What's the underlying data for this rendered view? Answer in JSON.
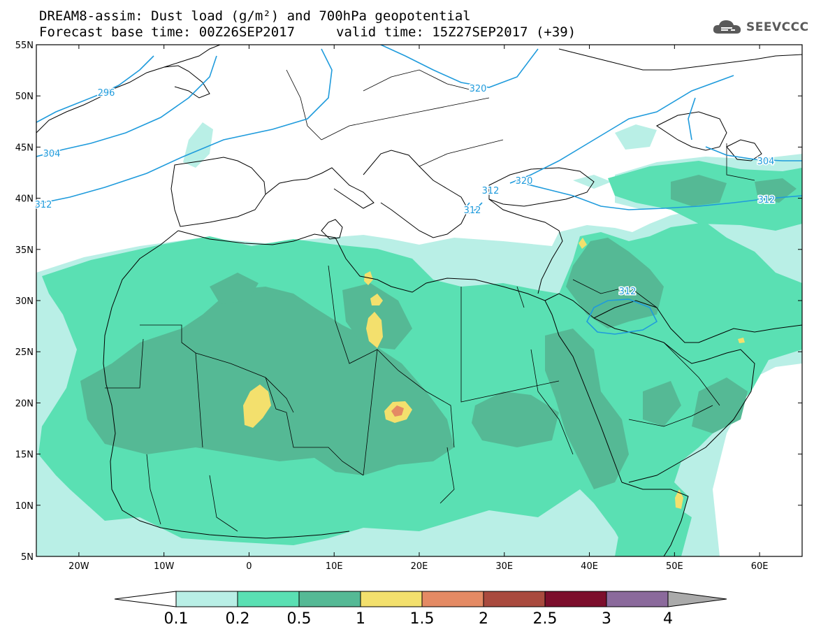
{
  "title": {
    "line1": "DREAM8-assim: Dust load (g/m²) and 700hPa geopotential",
    "line2_base": "Forecast base time: 00Z26SEP2017",
    "line2_valid": "valid time: 15Z27SEP2017 (+39)"
  },
  "logo": {
    "text": "SEEVCCC",
    "icon": "cloud-icon"
  },
  "map": {
    "lon_range": [
      -25,
      65
    ],
    "lat_range": [
      5,
      55
    ],
    "lat_ticks": [
      "55N",
      "50N",
      "45N",
      "40N",
      "35N",
      "30N",
      "25N",
      "20N",
      "15N",
      "10N",
      "5N"
    ],
    "lon_ticks": [
      "20W",
      "10W",
      "0",
      "10E",
      "20E",
      "30E",
      "40E",
      "50E",
      "60E"
    ],
    "contour_labels": [
      "296",
      "304",
      "312",
      "320",
      "320",
      "312",
      "304",
      "312",
      "312",
      "312",
      "320"
    ]
  },
  "colorbar": {
    "labels": [
      "0.1",
      "0.2",
      "0.5",
      "1",
      "1.5",
      "2",
      "2.5",
      "3",
      "4"
    ],
    "colors": [
      "#ffffff",
      "#b9efe6",
      "#5ae0b3",
      "#55b995",
      "#f3e06d",
      "#e48a64",
      "#a94a3e",
      "#7c0e2c",
      "#8b6a9c",
      "#aaaaaa"
    ]
  },
  "colors": {
    "light": "#b9efe6",
    "mid": "#5ae0b3",
    "dark": "#55b995",
    "yellow": "#f3e06d",
    "orange": "#e48a64",
    "contour": "#1f9bdc"
  }
}
